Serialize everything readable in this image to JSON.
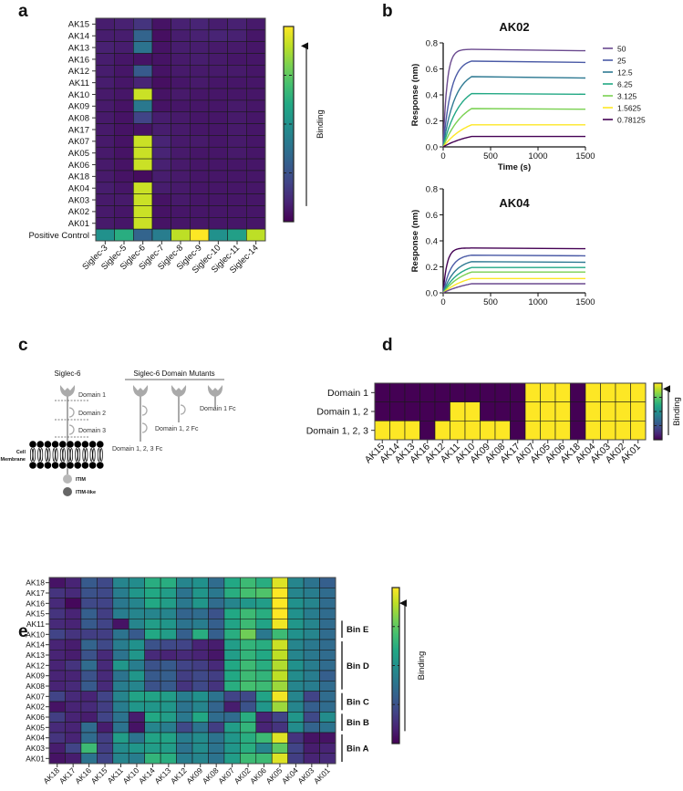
{
  "panel_labels": {
    "a": "a",
    "b": "b",
    "c": "c",
    "d": "d",
    "e": "e"
  },
  "colors": {
    "viridis": [
      "#440154",
      "#482475",
      "#414487",
      "#355f8d",
      "#2a788e",
      "#21918c",
      "#22a884",
      "#44bf70",
      "#7ad151",
      "#bddf26",
      "#fde725"
    ],
    "diagram_grey": "#aaaaaa",
    "membrane": "#000000"
  },
  "chart_data": [
    {
      "id": "a",
      "type": "heatmap",
      "title": "",
      "rows": [
        "AK15",
        "AK14",
        "AK13",
        "AK16",
        "AK12",
        "AK11",
        "AK10",
        "AK09",
        "AK08",
        "AK17",
        "AK07",
        "AK05",
        "AK06",
        "AK18",
        "AK04",
        "AK03",
        "AK02",
        "AK01",
        "Positive Control"
      ],
      "columns": [
        "Siglec-3",
        "Siglec-5",
        "Siglec-6",
        "Siglec-7",
        "Siglec-8",
        "Siglec-9",
        "Siglec-10",
        "Siglec-11",
        "Siglec-14"
      ],
      "values": [
        [
          0.08,
          0.09,
          0.15,
          0.05,
          0.09,
          0.1,
          0.08,
          0.09,
          0.07
        ],
        [
          0.08,
          0.08,
          0.32,
          0.04,
          0.08,
          0.09,
          0.1,
          0.09,
          0.06
        ],
        [
          0.09,
          0.08,
          0.38,
          0.05,
          0.08,
          0.08,
          0.07,
          0.07,
          0.06
        ],
        [
          0.08,
          0.06,
          0.05,
          0.05,
          0.07,
          0.08,
          0.07,
          0.06,
          0.06
        ],
        [
          0.08,
          0.06,
          0.28,
          0.05,
          0.07,
          0.07,
          0.07,
          0.07,
          0.06
        ],
        [
          0.08,
          0.06,
          0.1,
          0.04,
          0.06,
          0.07,
          0.06,
          0.06,
          0.06
        ],
        [
          0.07,
          0.06,
          0.92,
          0.05,
          0.07,
          0.06,
          0.06,
          0.06,
          0.06
        ],
        [
          0.07,
          0.05,
          0.4,
          0.05,
          0.06,
          0.06,
          0.06,
          0.07,
          0.06
        ],
        [
          0.07,
          0.05,
          0.2,
          0.08,
          0.07,
          0.06,
          0.06,
          0.07,
          0.06
        ],
        [
          0.07,
          0.05,
          0.05,
          0.08,
          0.07,
          0.06,
          0.06,
          0.07,
          0.06
        ],
        [
          0.07,
          0.05,
          0.92,
          0.1,
          0.07,
          0.07,
          0.06,
          0.07,
          0.06
        ],
        [
          0.07,
          0.05,
          0.92,
          0.1,
          0.07,
          0.06,
          0.06,
          0.07,
          0.06
        ],
        [
          0.07,
          0.05,
          0.92,
          0.09,
          0.07,
          0.06,
          0.06,
          0.06,
          0.06
        ],
        [
          0.07,
          0.05,
          0.03,
          0.08,
          0.07,
          0.06,
          0.06,
          0.06,
          0.06
        ],
        [
          0.08,
          0.06,
          0.92,
          0.08,
          0.07,
          0.06,
          0.06,
          0.06,
          0.06
        ],
        [
          0.07,
          0.07,
          0.92,
          0.05,
          0.07,
          0.06,
          0.06,
          0.06,
          0.06
        ],
        [
          0.07,
          0.06,
          0.92,
          0.05,
          0.06,
          0.06,
          0.06,
          0.06,
          0.06
        ],
        [
          0.07,
          0.06,
          0.92,
          0.05,
          0.06,
          0.06,
          0.06,
          0.06,
          0.06
        ],
        [
          0.5,
          0.62,
          0.32,
          0.42,
          0.9,
          1.0,
          0.5,
          0.56,
          0.9
        ]
      ],
      "colorbar_label": "Binding",
      "range": [
        0,
        1
      ]
    },
    {
      "id": "b1",
      "type": "line",
      "title": "AK02",
      "xlabel": "Time (s)",
      "ylabel": "Response (nm)",
      "xlim": [
        0,
        1500
      ],
      "ylim": [
        0,
        0.8
      ],
      "xticks": [
        "0",
        "500",
        "1000",
        "1500"
      ],
      "yticks": [
        "0.0",
        "0.2",
        "0.4",
        "0.6",
        "0.8"
      ],
      "association_end": 300,
      "legend_position": "right",
      "series": [
        {
          "name": "50",
          "plateau": 0.75,
          "end": 0.74,
          "color": "#6b4a8f"
        },
        {
          "name": "25",
          "plateau": 0.66,
          "end": 0.65,
          "color": "#4a5aa6"
        },
        {
          "name": "12.5",
          "plateau": 0.54,
          "end": 0.53,
          "color": "#2f7a93"
        },
        {
          "name": "6.25",
          "plateau": 0.41,
          "end": 0.405,
          "color": "#22a884"
        },
        {
          "name": "3.125",
          "plateau": 0.295,
          "end": 0.29,
          "color": "#7ad151"
        },
        {
          "name": "1.5625",
          "plateau": 0.17,
          "end": 0.17,
          "color": "#fde725"
        },
        {
          "name": "0.78125",
          "plateau": 0.08,
          "end": 0.08,
          "color": "#440154"
        }
      ]
    },
    {
      "id": "b2",
      "type": "line",
      "title": "AK04",
      "xlabel": "",
      "ylabel": "Response (nm)",
      "xlim": [
        0,
        1500
      ],
      "ylim": [
        0,
        0.8
      ],
      "xticks": [
        "0",
        "500",
        "1000",
        "1500"
      ],
      "yticks": [
        "0.0",
        "0.2",
        "0.4",
        "0.6",
        "0.8"
      ],
      "association_end": 300,
      "series": [
        {
          "name": "50",
          "plateau": 0.345,
          "end": 0.34,
          "color": "#440154"
        },
        {
          "name": "25",
          "plateau": 0.29,
          "end": 0.285,
          "color": "#4a5aa6"
        },
        {
          "name": "12.5",
          "plateau": 0.24,
          "end": 0.235,
          "color": "#2f7a93"
        },
        {
          "name": "6.25",
          "plateau": 0.195,
          "end": 0.195,
          "color": "#22a884"
        },
        {
          "name": "3.125",
          "plateau": 0.16,
          "end": 0.16,
          "color": "#7ad151"
        },
        {
          "name": "1.5625",
          "plateau": 0.11,
          "end": 0.11,
          "color": "#fde725"
        },
        {
          "name": "0.78125",
          "plateau": 0.07,
          "end": 0.07,
          "color": "#6b4a8f"
        }
      ]
    },
    {
      "id": "d",
      "type": "heatmap",
      "rows": [
        "Domain 1",
        "Domain 1, 2",
        "Domain 1, 2, 3"
      ],
      "columns": [
        "AK15",
        "AK14",
        "AK13",
        "AK16",
        "AK12",
        "AK11",
        "AK10",
        "AK09",
        "AK08",
        "AK17",
        "AK07",
        "AK05",
        "AK06",
        "AK18",
        "AK04",
        "AK03",
        "AK02",
        "AK01"
      ],
      "values": [
        [
          0,
          0,
          0,
          0,
          0,
          0,
          0,
          0,
          0,
          0,
          1,
          1,
          1,
          0,
          1,
          1,
          1,
          1
        ],
        [
          0,
          0,
          0,
          0,
          0,
          1,
          1,
          0,
          0,
          0,
          1,
          1,
          1,
          0,
          1,
          1,
          1,
          1
        ],
        [
          1,
          1,
          1,
          0,
          1,
          1,
          1,
          1,
          1,
          0,
          1,
          1,
          1,
          0,
          1,
          1,
          1,
          1
        ]
      ],
      "colorbar_label": "Binding",
      "range": [
        0,
        1
      ]
    },
    {
      "id": "e",
      "type": "heatmap",
      "rows": [
        "AK18",
        "AK17",
        "AK16",
        "AK15",
        "AK11",
        "AK10",
        "AK14",
        "AK13",
        "AK12",
        "AK09",
        "AK08",
        "AK07",
        "AK02",
        "AK06",
        "AK05",
        "AK04",
        "AK03",
        "AK01"
      ],
      "columns": [
        "AK18",
        "AK17",
        "AK16",
        "AK15",
        "AK11",
        "AK10",
        "AK14",
        "AK13",
        "AK12",
        "AK09",
        "AK08",
        "AK07",
        "AK02",
        "AK06",
        "AK05",
        "AK04",
        "AK03",
        "AK01"
      ],
      "values": [
        [
          0.05,
          0.1,
          0.28,
          0.22,
          0.45,
          0.48,
          0.62,
          0.62,
          0.45,
          0.5,
          0.35,
          0.6,
          0.68,
          0.62,
          0.95,
          0.45,
          0.38,
          0.3
        ],
        [
          0.15,
          0.12,
          0.25,
          0.22,
          0.42,
          0.52,
          0.6,
          0.55,
          0.38,
          0.52,
          0.4,
          0.62,
          0.7,
          0.72,
          1.0,
          0.45,
          0.42,
          0.35
        ],
        [
          0.12,
          0.02,
          0.22,
          0.2,
          0.4,
          0.45,
          0.6,
          0.55,
          0.4,
          0.52,
          0.35,
          0.45,
          0.52,
          0.55,
          1.0,
          0.5,
          0.45,
          0.35
        ],
        [
          0.15,
          0.1,
          0.3,
          0.18,
          0.42,
          0.45,
          0.45,
          0.45,
          0.32,
          0.35,
          0.25,
          0.6,
          0.68,
          0.62,
          1.0,
          0.5,
          0.42,
          0.35
        ],
        [
          0.12,
          0.1,
          0.28,
          0.2,
          0.05,
          0.45,
          0.55,
          0.52,
          0.38,
          0.42,
          0.3,
          0.58,
          0.68,
          0.58,
          0.98,
          0.52,
          0.45,
          0.35
        ],
        [
          0.2,
          0.15,
          0.18,
          0.18,
          0.38,
          0.28,
          0.6,
          0.55,
          0.3,
          0.62,
          0.3,
          0.62,
          0.78,
          0.4,
          0.68,
          0.5,
          0.45,
          0.35
        ],
        [
          0.1,
          0.08,
          0.32,
          0.22,
          0.42,
          0.5,
          0.25,
          0.22,
          0.2,
          0.1,
          0.08,
          0.55,
          0.65,
          0.62,
          0.92,
          0.45,
          0.4,
          0.35
        ],
        [
          0.1,
          0.08,
          0.25,
          0.12,
          0.38,
          0.52,
          0.12,
          0.1,
          0.12,
          0.1,
          0.06,
          0.55,
          0.65,
          0.6,
          0.9,
          0.45,
          0.4,
          0.35
        ],
        [
          0.1,
          0.15,
          0.35,
          0.12,
          0.52,
          0.42,
          0.25,
          0.28,
          0.2,
          0.18,
          0.12,
          0.6,
          0.68,
          0.62,
          0.88,
          0.5,
          0.42,
          0.35
        ],
        [
          0.1,
          0.1,
          0.25,
          0.12,
          0.38,
          0.52,
          0.28,
          0.3,
          0.18,
          0.22,
          0.18,
          0.6,
          0.68,
          0.65,
          0.9,
          0.48,
          0.42,
          0.3
        ],
        [
          0.1,
          0.12,
          0.28,
          0.12,
          0.42,
          0.45,
          0.25,
          0.28,
          0.15,
          0.22,
          0.15,
          0.62,
          0.7,
          0.68,
          0.85,
          0.45,
          0.42,
          0.35
        ],
        [
          0.2,
          0.12,
          0.1,
          0.2,
          0.45,
          0.58,
          0.58,
          0.55,
          0.42,
          0.5,
          0.38,
          0.2,
          0.22,
          0.58,
          0.98,
          0.45,
          0.2,
          0.35
        ],
        [
          0.05,
          0.1,
          0.12,
          0.18,
          0.42,
          0.52,
          0.52,
          0.52,
          0.38,
          0.45,
          0.32,
          0.08,
          0.25,
          0.52,
          0.85,
          0.45,
          0.3,
          0.35
        ],
        [
          0.18,
          0.1,
          0.08,
          0.2,
          0.38,
          0.08,
          0.6,
          0.55,
          0.4,
          0.6,
          0.35,
          0.35,
          0.62,
          0.1,
          0.2,
          0.52,
          0.22,
          0.48
        ],
        [
          0.12,
          0.1,
          0.35,
          0.08,
          0.38,
          0.05,
          0.45,
          0.42,
          0.22,
          0.38,
          0.18,
          0.55,
          0.65,
          0.1,
          0.15,
          0.48,
          0.32,
          0.38
        ],
        [
          0.15,
          0.1,
          0.35,
          0.18,
          0.55,
          0.38,
          0.58,
          0.58,
          0.42,
          0.48,
          0.38,
          0.52,
          0.62,
          0.68,
          0.95,
          0.15,
          0.05,
          0.05
        ],
        [
          0.08,
          0.2,
          0.68,
          0.18,
          0.48,
          0.52,
          0.55,
          0.55,
          0.38,
          0.48,
          0.38,
          0.52,
          0.62,
          0.45,
          0.75,
          0.2,
          0.08,
          0.1
        ],
        [
          0.05,
          0.08,
          0.38,
          0.2,
          0.45,
          0.42,
          0.65,
          0.62,
          0.42,
          0.45,
          0.38,
          0.55,
          0.68,
          0.68,
          0.95,
          0.18,
          0.1,
          0.12
        ]
      ],
      "bins": [
        {
          "label": "Bin E",
          "rows": [
            "AK11",
            "AK10"
          ]
        },
        {
          "label": "Bin D",
          "rows": [
            "AK14",
            "AK13",
            "AK12",
            "AK09",
            "AK08"
          ]
        },
        {
          "label": "Bin C",
          "rows": [
            "AK07",
            "AK02"
          ]
        },
        {
          "label": "Bin B",
          "rows": [
            "AK06",
            "AK05"
          ]
        },
        {
          "label": "Bin A",
          "rows": [
            "AK04",
            "AK03",
            "AK01"
          ]
        }
      ],
      "colorbar_label": "Binding",
      "range": [
        0,
        1
      ]
    }
  ],
  "diagram": {
    "siglec6_title": "Siglec-6",
    "mutants_title": "Siglec-6 Domain Mutants",
    "domain1": "Domain 1",
    "domain2": "Domain 2",
    "domain3": "Domain 3",
    "mutant_123": "Domain 1, 2, 3 Fc",
    "mutant_12": "Domain 1, 2 Fc",
    "mutant_1": "Domain 1 Fc",
    "membrane_line1": "Cell",
    "membrane_line2": "Membrane",
    "itim": "ITIM",
    "itim_like": "ITIM-like"
  }
}
